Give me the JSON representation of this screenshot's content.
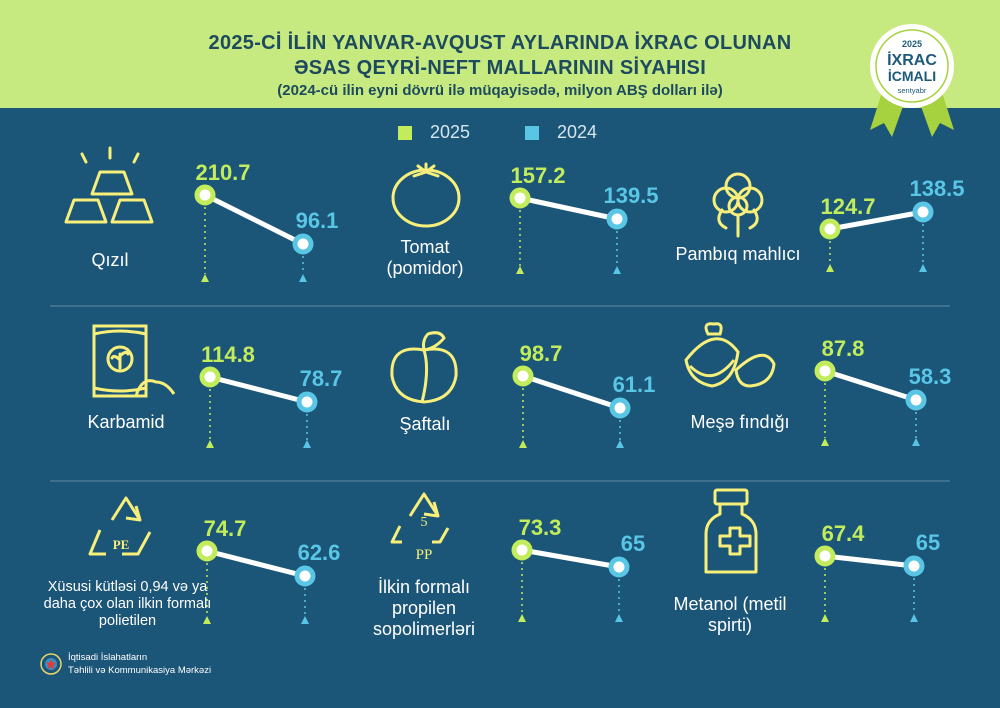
{
  "header": {
    "title_line1": "2025-Cİ İLİN YANVAR-AVQUST AYLARINDA İXRAC OLUNAN",
    "title_line2": "ƏSAS QEYRİ-NEFT MALLARININ SİYAHISI",
    "subtitle": "(2024-cü ilin eyni dövrü ilə müqayisədə, milyon ABŞ dolları ilə)"
  },
  "badge": {
    "year": "2025",
    "line1": "İXRAC",
    "line2": "İCMALI",
    "month": "sentyabr"
  },
  "colors": {
    "y2025": "#c2ec5c",
    "y2024": "#59c6e6",
    "background": "#1b5577",
    "header_bg": "#c6ea7f"
  },
  "footer": {
    "line1": "İqtisadi İslahatların",
    "line2": "Təhlili və Kommunikasiya Mərkəzi"
  },
  "chart_data": {
    "type": "line",
    "series": [
      {
        "name": "2025"
      },
      {
        "name": "2024"
      }
    ],
    "items": [
      {
        "label": "Qızıl",
        "icon": "gold-bars-icon",
        "values": [
          210.7,
          96.1
        ],
        "value_labels": [
          "210.7",
          "96.1"
        ]
      },
      {
        "label": "Tomat (pomidor)",
        "icon": "tomato-icon",
        "values": [
          157.2,
          139.5
        ],
        "value_labels": [
          "157.2",
          "139.5"
        ]
      },
      {
        "label": "Pambıq mahlıcı",
        "icon": "cotton-icon",
        "values": [
          124.7,
          138.5
        ],
        "value_labels": [
          "124.7",
          "138.5"
        ]
      },
      {
        "label": "Karbamid",
        "icon": "fertilizer-bag-icon",
        "values": [
          114.8,
          78.7
        ],
        "value_labels": [
          "114.8",
          "78.7"
        ]
      },
      {
        "label": "Şaftalı",
        "icon": "peach-icon",
        "values": [
          98.7,
          61.1
        ],
        "value_labels": [
          "98.7",
          "61.1"
        ]
      },
      {
        "label": "Meşə fındığı",
        "icon": "hazelnut-icon",
        "values": [
          87.8,
          58.3
        ],
        "value_labels": [
          "87.8",
          "58.3"
        ]
      },
      {
        "label": "Xüsusi kütləsi 0,94 və ya daha çox olan ilkin formalı polietilen",
        "icon": "pe-recycle-icon",
        "icon_text": "PE",
        "values": [
          74.7,
          62.6
        ],
        "value_labels": [
          "74.7",
          "62.6"
        ]
      },
      {
        "label": "İlkin formalı propilen sopolimerləri",
        "icon": "pp-recycle-icon",
        "icon_text": "PP",
        "icon_number": "5",
        "values": [
          73.3,
          65
        ],
        "value_labels": [
          "73.3",
          "65"
        ]
      },
      {
        "label": "Metanol (metil spirti)",
        "icon": "medicine-bottle-icon",
        "values": [
          67.4,
          65
        ],
        "value_labels": [
          "67.4",
          "65"
        ]
      }
    ]
  }
}
